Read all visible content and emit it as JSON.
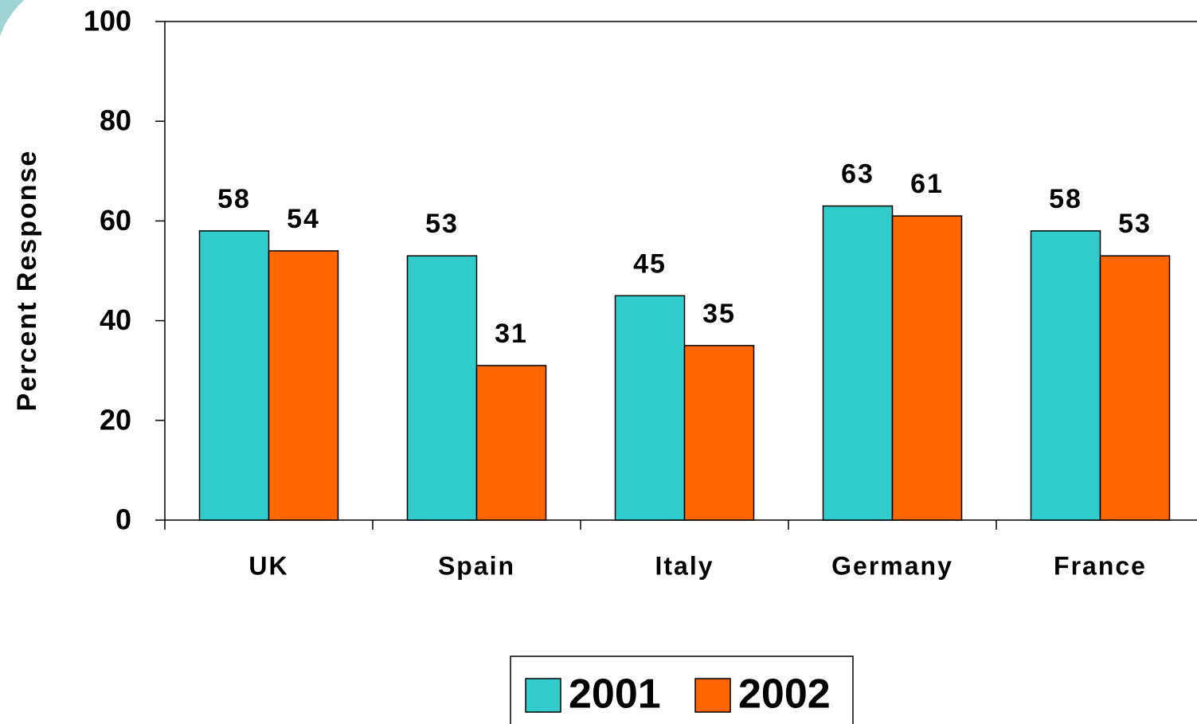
{
  "chart_data": {
    "type": "bar",
    "y_label": "Percent Response",
    "categories": [
      "UK",
      "Spain",
      "Italy",
      "Germany",
      "France"
    ],
    "series": [
      {
        "name": "2001",
        "color": "#33CCCC",
        "values": [
          58,
          53,
          45,
          63,
          58
        ]
      },
      {
        "name": "2002",
        "color": "#FF6600",
        "values": [
          54,
          31,
          35,
          61,
          53
        ]
      }
    ],
    "ylim": [
      0,
      100
    ],
    "yticks": [
      0,
      20,
      40,
      60,
      80,
      100
    ],
    "legend": "bottom"
  }
}
